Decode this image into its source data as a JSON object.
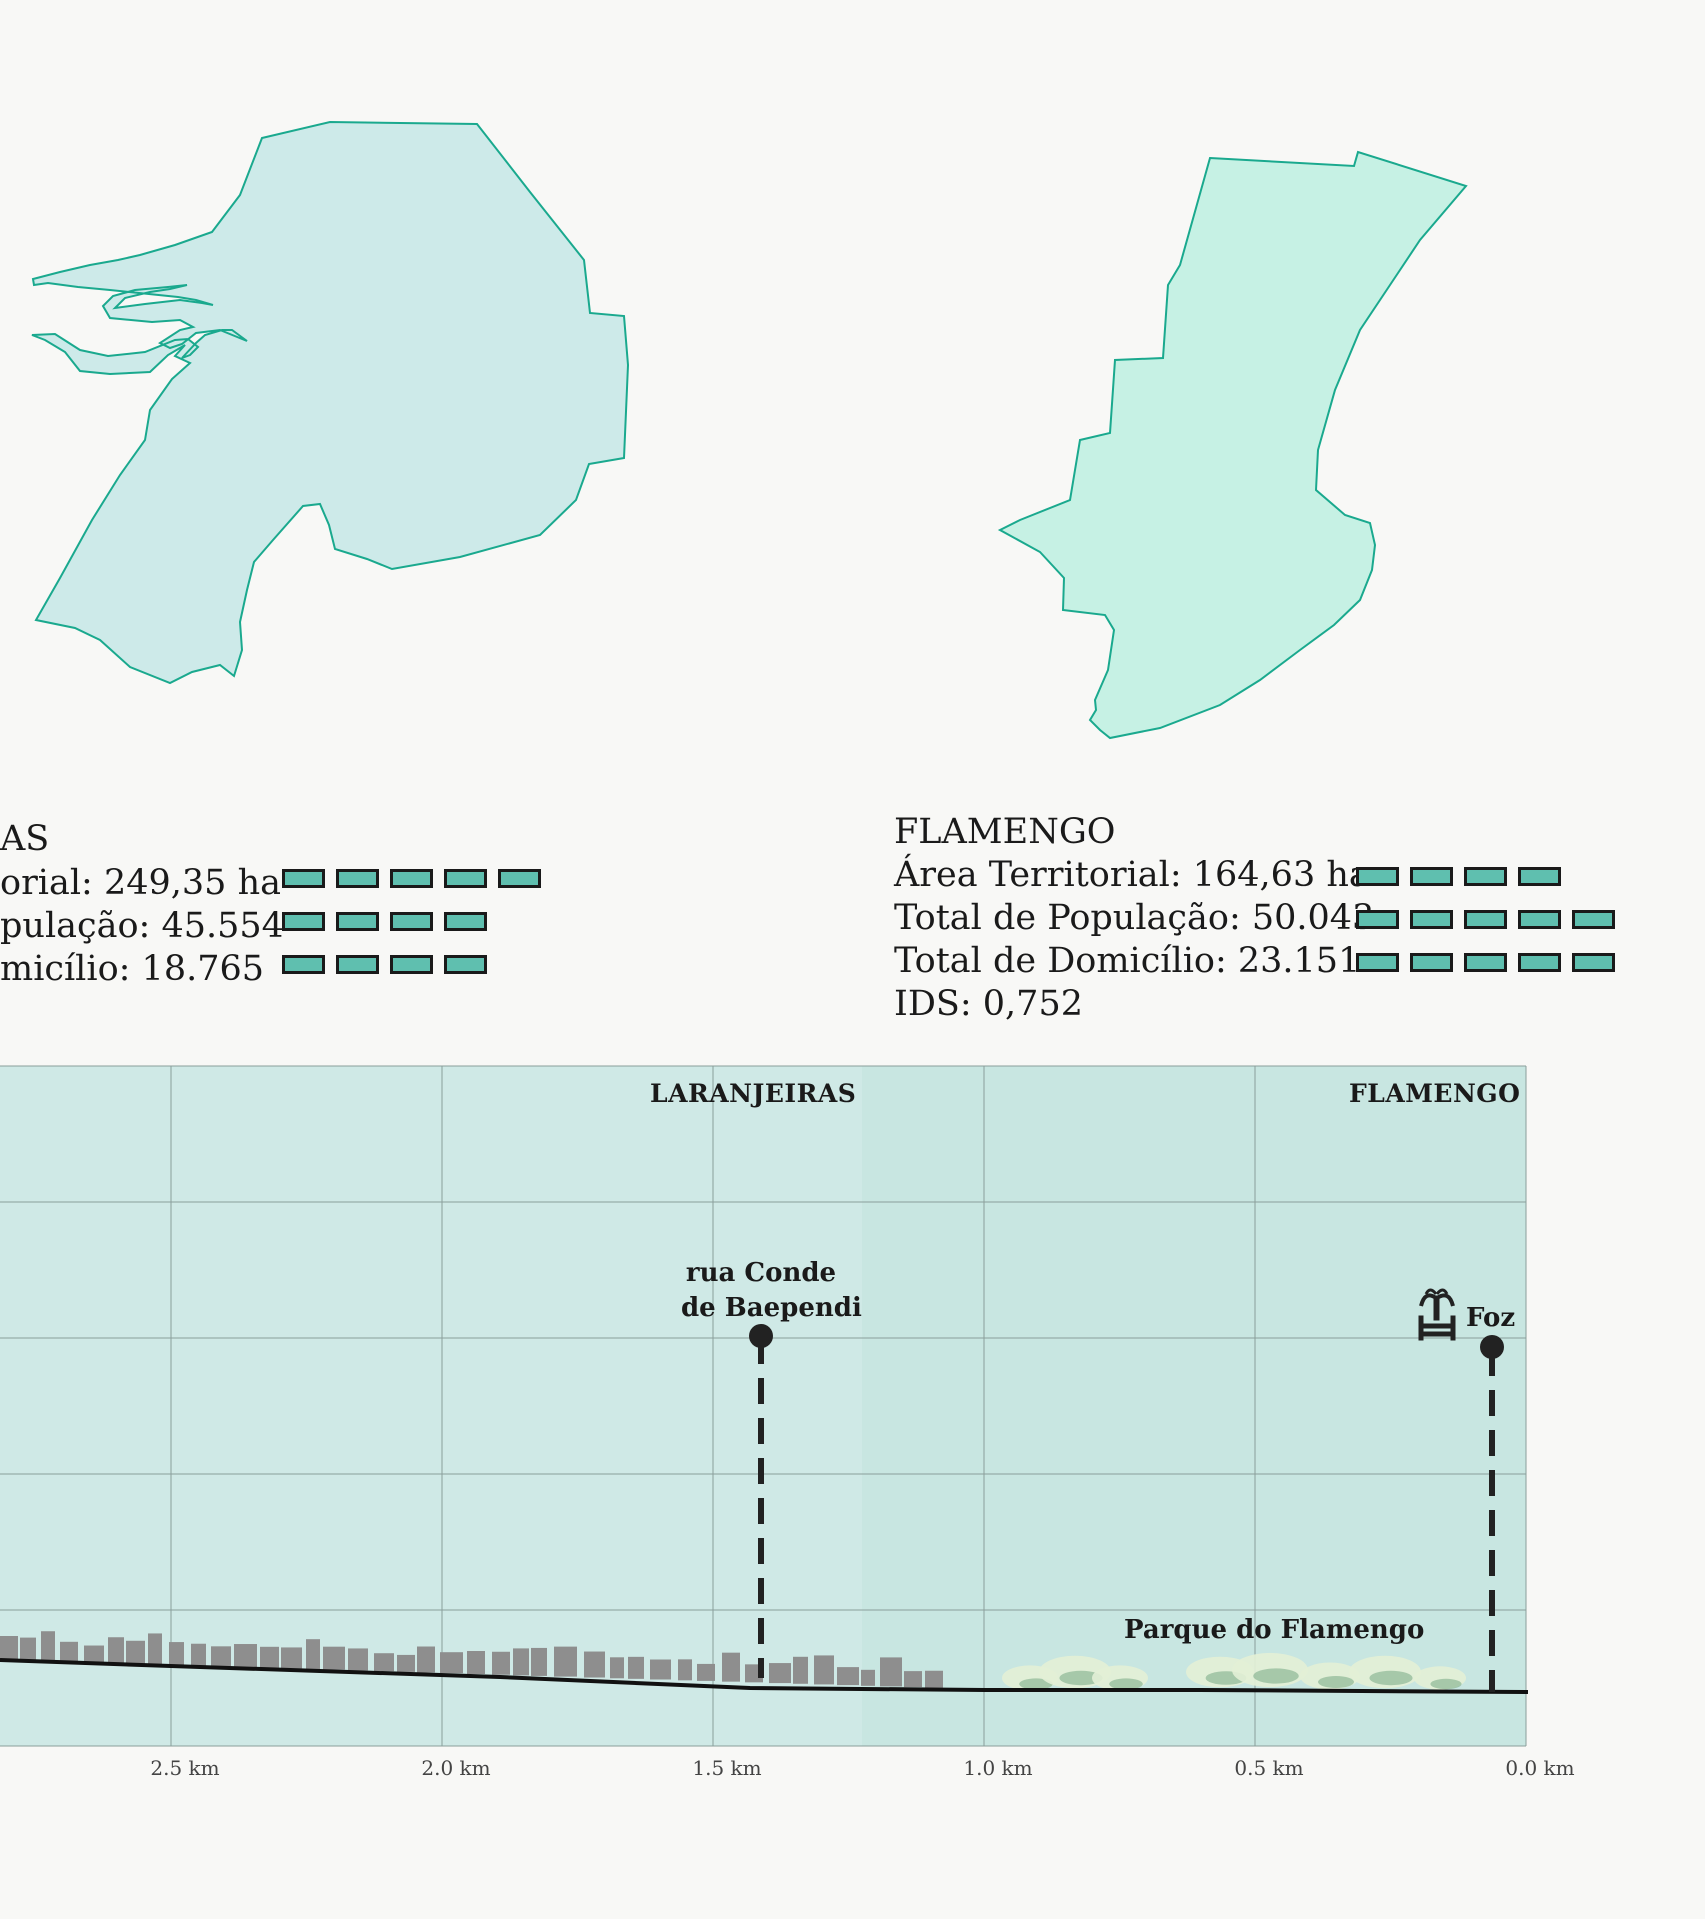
{
  "colors": {
    "laranjeiras_fill": "#cdeae9",
    "flamengo_fill": "#c6f1e4",
    "outline": "#1aa98e",
    "indicator": "#5fbfaf",
    "chart_bg": "#cfe9e6",
    "chart_bg_dark": "#c2e3dd",
    "ground": "#111111",
    "buildings": "#8e8e8e"
  },
  "laranjeiras": {
    "name_partial": "AS",
    "area_partial": "orial: 249,35 ha",
    "pop_partial": "pulação: 45.554",
    "dom_partial": "micílio: 18.765",
    "area_blocks": 5,
    "pop_blocks": 4,
    "dom_blocks": 4
  },
  "flamengo": {
    "name": "FLAMENGO",
    "area": "Área Territorial: 164,63 ha",
    "pop": "Total de População: 50.043",
    "dom": "Total de Domicílio: 23.151",
    "ids": "IDS: 0,752",
    "area_blocks": 4,
    "pop_blocks": 5,
    "dom_blocks": 5
  },
  "chart_data": {
    "type": "area",
    "regions": [
      "LARANJEIRAS",
      "FLAMENGO"
    ],
    "x_ticks": [
      "2.5 km",
      "2.0 km",
      "1.5 km",
      "1.0 km",
      "0.5 km",
      "0.0 km"
    ],
    "x_tick_values": [
      2.5,
      2.0,
      1.5,
      1.0,
      0.5,
      0.0
    ],
    "x_reversed": true,
    "grid": true,
    "markers": [
      {
        "label_line1": "rua Conde",
        "label_line2": "de Baependi",
        "x_km": 1.4
      },
      {
        "label": "Foz",
        "icon": "fountain-icon",
        "x_km": 0.07
      }
    ],
    "annotations": [
      "Parque do Flamengo"
    ]
  }
}
